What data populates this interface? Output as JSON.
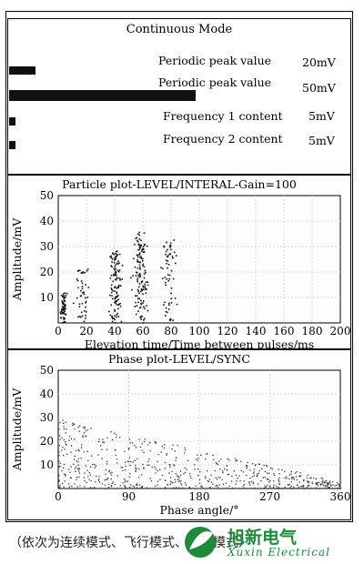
{
  "panel1": {
    "title": "Continuous Mode",
    "rows": [
      {
        "label": "Periodic peak value",
        "value": "20mV",
        "bar": 20
      },
      {
        "label": "Periodic peak value",
        "value": "50mV",
        "bar": 50
      },
      {
        "label": "Frequency 1 content",
        "value": "5mV",
        "bar": 5
      },
      {
        "label": "Frequency 2 content",
        "value": "5mV",
        "bar": 5
      }
    ]
  },
  "chart_data": [
    {
      "type": "scatter",
      "title": "Particle plot-LEVEL/INTERAL-Gain=100",
      "xlabel": "Elevation time/Time between  pulses/ms",
      "ylabel": "Amplitude/mV",
      "xlim": [
        0,
        200
      ],
      "ylim": [
        0,
        50
      ],
      "xticks": [
        0,
        20,
        40,
        60,
        80,
        100,
        120,
        140,
        160,
        180,
        200
      ],
      "yticks": [
        0,
        10,
        20,
        30,
        40,
        50
      ],
      "grid": true,
      "clusters": [
        {
          "x_center": 3,
          "x_spread": 3,
          "y_max": 12,
          "count": 70
        },
        {
          "x_center": 17,
          "x_spread": 7,
          "y_max": 22,
          "count": 45
        },
        {
          "x_center": 40,
          "x_spread": 5,
          "y_max": 29,
          "count": 110
        },
        {
          "x_center": 58,
          "x_spread": 6,
          "y_max": 36,
          "count": 130
        },
        {
          "x_center": 78,
          "x_spread": 6,
          "y_max": 33,
          "count": 60
        }
      ]
    },
    {
      "type": "scatter",
      "title": "Phase plot-LEVEL/SYNC",
      "xlabel": "Phase  angle/°",
      "ylabel": "Amplitude/mV",
      "xlim": [
        0,
        360
      ],
      "ylim": [
        0,
        50
      ],
      "xticks": [
        0,
        90,
        180,
        270,
        360
      ],
      "yticks": [
        0,
        10,
        20,
        30,
        40,
        50
      ],
      "grid": true,
      "density": "decaying from high amplitude at low phase to low amplitude at high phase",
      "count": 650
    }
  ],
  "caption": "（依次为连续模式、飞行模式、相位模式）",
  "logo": {
    "name": "旭新电气",
    "sub": "Xuxin Electrical"
  }
}
